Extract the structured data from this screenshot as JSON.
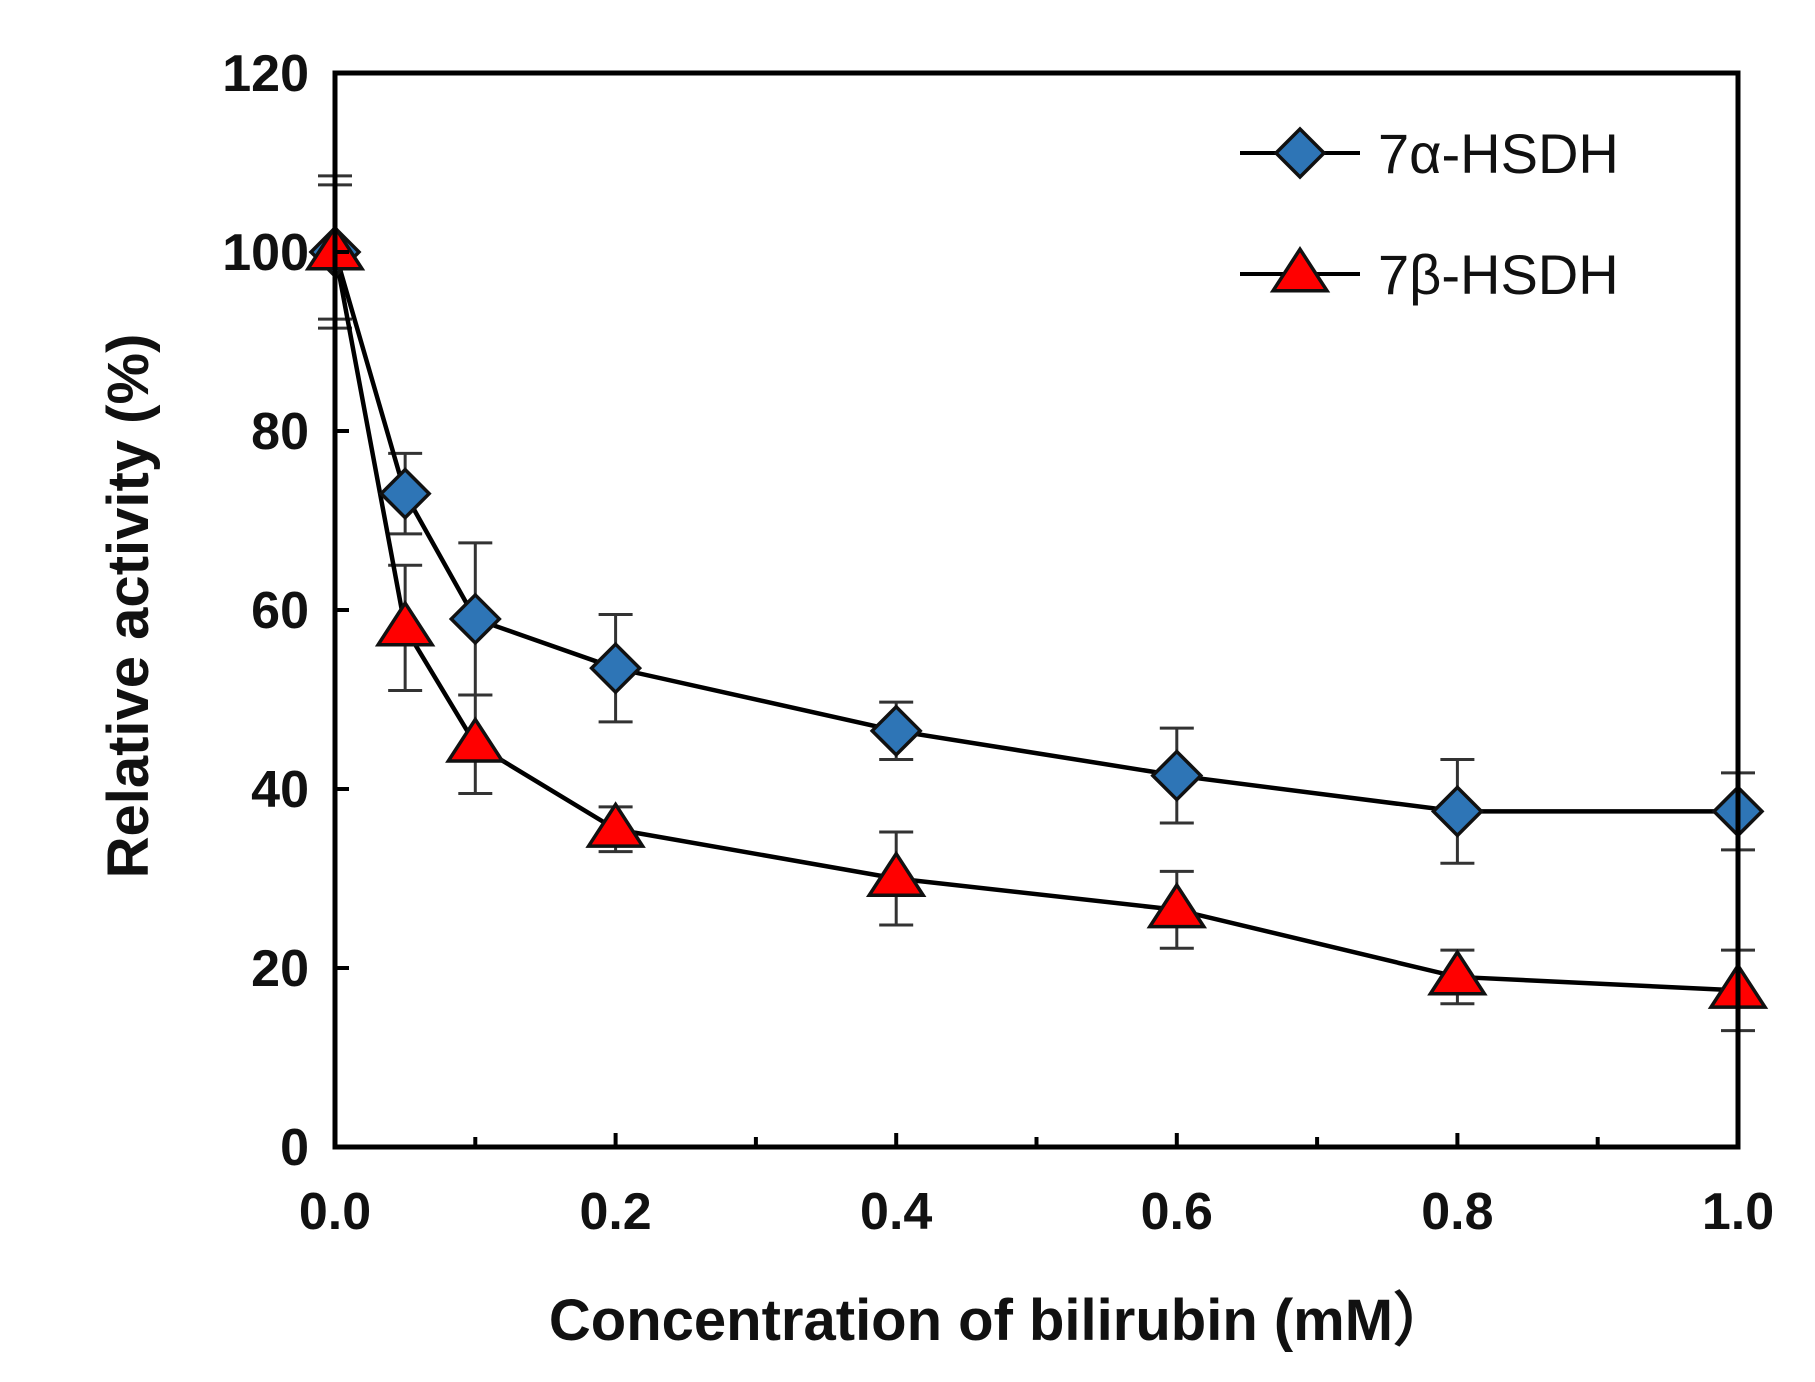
{
  "chart_data": {
    "type": "line",
    "title": "",
    "xlabel": "Concentration of bilirubin (mM）",
    "ylabel": "Relative activity (%)",
    "xlim": [
      0.0,
      1.0
    ],
    "ylim": [
      0,
      120
    ],
    "x_ticks": [
      0.0,
      0.2,
      0.4,
      0.6,
      0.8,
      1.0
    ],
    "x_tick_labels": [
      "0.0",
      "0.2",
      "0.4",
      "0.6",
      "0.8",
      "1.0"
    ],
    "x_minor_ticks": [
      0.1,
      0.3,
      0.5,
      0.7,
      0.9
    ],
    "y_ticks": [
      0,
      20,
      40,
      60,
      80,
      100,
      120
    ],
    "y_tick_labels": [
      "0",
      "20",
      "40",
      "60",
      "80",
      "100",
      "120"
    ],
    "grid": false,
    "legend_position": "top-right",
    "series": [
      {
        "name": "7α-HSDH",
        "marker": "diamond",
        "color": "#2e75b6",
        "x": [
          0.0,
          0.05,
          0.1,
          0.2,
          0.4,
          0.6,
          0.8,
          1.0
        ],
        "values": [
          100,
          73,
          59,
          53.5,
          46.5,
          41.5,
          37.5,
          37.5
        ],
        "error": [
          8.5,
          4.5,
          8.5,
          6,
          3.2,
          5.3,
          5.8,
          4.3
        ]
      },
      {
        "name": "7β-HSDH",
        "marker": "triangle",
        "color": "#ff0000",
        "x": [
          0.0,
          0.05,
          0.1,
          0.2,
          0.4,
          0.6,
          0.8,
          1.0
        ],
        "values": [
          100,
          58,
          45,
          35.5,
          30,
          26.5,
          19,
          17.5
        ],
        "error": [
          7.5,
          7,
          5.5,
          2.5,
          5.2,
          4.3,
          3,
          4.5
        ]
      }
    ]
  }
}
